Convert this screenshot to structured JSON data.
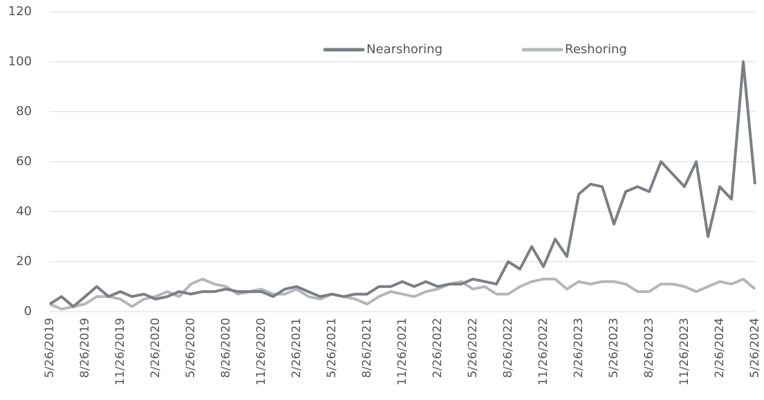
{
  "chart_data": {
    "type": "line",
    "categories": [
      "5/26/2019",
      null,
      null,
      "8/26/2019",
      null,
      null,
      "11/26/2019",
      null,
      null,
      "2/26/2020",
      null,
      null,
      "5/26/2020",
      null,
      null,
      "8/26/2020",
      null,
      null,
      "11/26/2020",
      null,
      null,
      "2/26/2021",
      null,
      null,
      "5/26/2021",
      null,
      null,
      "8/26/2021",
      null,
      null,
      "11/26/2021",
      null,
      null,
      "2/26/2022",
      null,
      null,
      "5/26/2022",
      null,
      null,
      "8/26/2022",
      null,
      null,
      "11/26/2022",
      null,
      null,
      "2/26/2023",
      null,
      null,
      "5/26/2023",
      null,
      null,
      "8/26/2023",
      null,
      null,
      "11/26/2023",
      null,
      null,
      "2/26/2024",
      null,
      null,
      "5/26/2024"
    ],
    "series": [
      {
        "name": "Nearshoring",
        "color": "#7a7f86",
        "values": [
          3,
          6,
          2,
          6,
          10,
          6,
          8,
          6,
          7,
          5,
          6,
          8,
          7,
          8,
          8,
          9,
          8,
          8,
          8,
          6,
          9,
          10,
          8,
          6,
          7,
          6,
          7,
          7,
          10,
          10,
          12,
          10,
          12,
          10,
          11,
          11,
          13,
          12,
          11,
          20,
          17,
          26,
          18,
          29,
          22,
          47,
          51,
          50,
          35,
          48,
          50,
          48,
          60,
          55,
          50,
          60,
          30,
          50,
          45,
          100,
          51
        ]
      },
      {
        "name": "Reshoring",
        "color": "#b3b7bb",
        "values": [
          3,
          1,
          2,
          3,
          6,
          6,
          5,
          2,
          5,
          6,
          8,
          6,
          11,
          13,
          11,
          10,
          7,
          8,
          9,
          7,
          7,
          9,
          6,
          5,
          7,
          6,
          5,
          3,
          6,
          8,
          7,
          6,
          8,
          9,
          11,
          12,
          9,
          10,
          7,
          7,
          10,
          12,
          13,
          13,
          9,
          12,
          11,
          12,
          12,
          11,
          8,
          8,
          11,
          11,
          10,
          8,
          10,
          12,
          11,
          13,
          9
        ]
      }
    ],
    "ylim": [
      0,
      120
    ],
    "yticks": [
      0,
      20,
      40,
      60,
      80,
      100,
      120
    ],
    "grid": true,
    "legend": "top"
  }
}
